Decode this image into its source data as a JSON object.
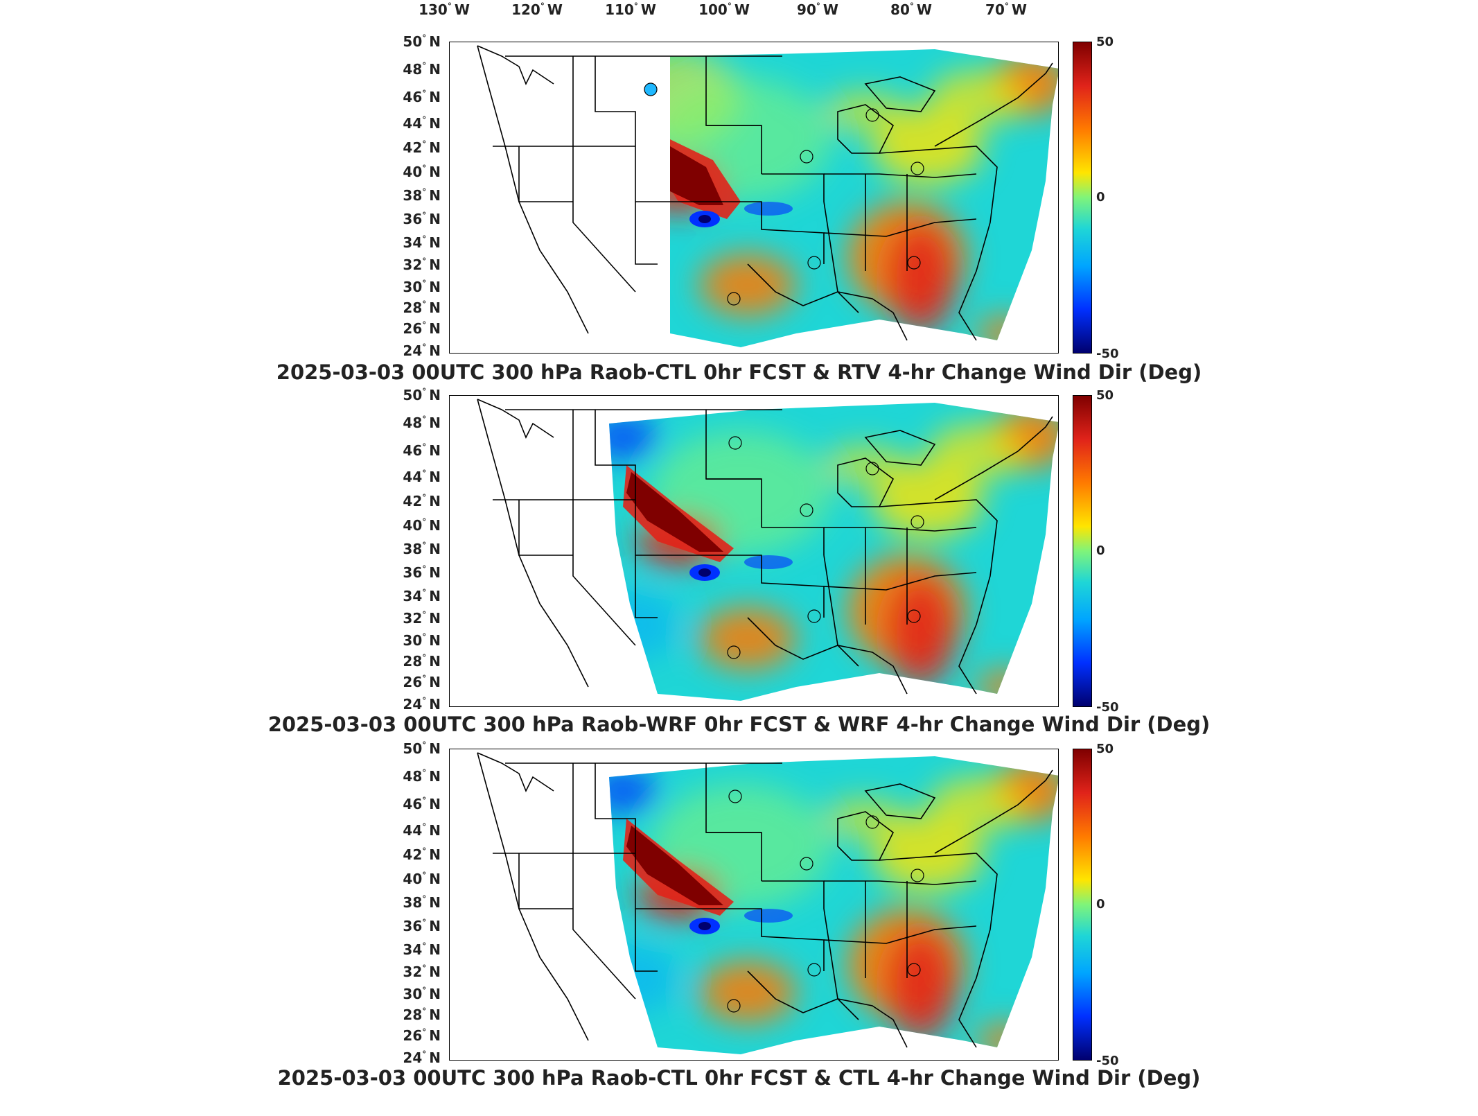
{
  "longitude_labels": [
    {
      "deg": "130",
      "hem": "W"
    },
    {
      "deg": "120",
      "hem": "W"
    },
    {
      "deg": "110",
      "hem": "W"
    },
    {
      "deg": "100",
      "hem": "W"
    },
    {
      "deg": "90",
      "hem": "W"
    },
    {
      "deg": "80",
      "hem": "W"
    },
    {
      "deg": "70",
      "hem": "W"
    }
  ],
  "latitude_labels": [
    {
      "deg": "50",
      "hem": "N"
    },
    {
      "deg": "48",
      "hem": "N"
    },
    {
      "deg": "46",
      "hem": "N"
    },
    {
      "deg": "44",
      "hem": "N"
    },
    {
      "deg": "42",
      "hem": "N"
    },
    {
      "deg": "40",
      "hem": "N"
    },
    {
      "deg": "38",
      "hem": "N"
    },
    {
      "deg": "36",
      "hem": "N"
    },
    {
      "deg": "34",
      "hem": "N"
    },
    {
      "deg": "32",
      "hem": "N"
    },
    {
      "deg": "30",
      "hem": "N"
    },
    {
      "deg": "28",
      "hem": "N"
    },
    {
      "deg": "26",
      "hem": "N"
    },
    {
      "deg": "24",
      "hem": "N"
    }
  ],
  "colorbar": {
    "max_label": "50",
    "mid_label": "0",
    "min_label": "-50",
    "colors": [
      "#7f0000",
      "#e0231a",
      "#ff7a00",
      "#ffe500",
      "#7ff47a",
      "#1fd6d6",
      "#00a5ff",
      "#0030ff",
      "#00006e"
    ]
  },
  "panels": [
    {
      "title": "2025-03-03 00UTC 300 hPa Raob-CTL 0hr FCST & RTV 4-hr Change Wind Dir (Deg)",
      "domain": "small",
      "filled_station": true
    },
    {
      "title": "2025-03-03 00UTC 300 hPa Raob-WRF 0hr FCST & WRF 4-hr Change Wind Dir (Deg)",
      "domain": "large",
      "filled_station": false
    },
    {
      "title": "2025-03-03 00UTC 300 hPa Raob-CTL 0hr FCST & CTL 4-hr Change Wind Dir (Deg)",
      "domain": "large",
      "filled_station": false
    }
  ]
}
